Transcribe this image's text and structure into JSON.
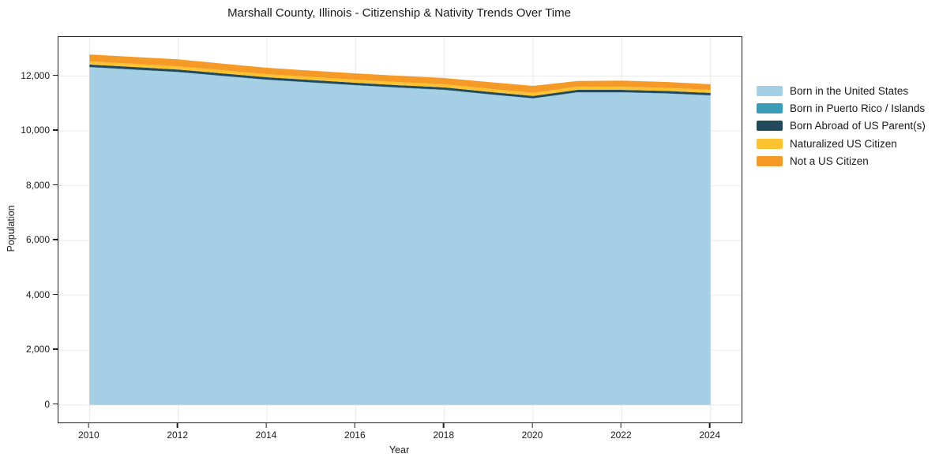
{
  "figure": {
    "background": "#ffffff",
    "text_color": "#1a1a1a",
    "grid_color": "#e8e8e8",
    "axis_color": "#1f1f1f"
  },
  "chart_data": {
    "type": "area",
    "stacked": true,
    "title": "Marshall County, Illinois - Citizenship & Nativity Trends Over Time",
    "xlabel": "Year",
    "ylabel": "Population",
    "x": [
      2010,
      2011,
      2012,
      2013,
      2014,
      2015,
      2016,
      2017,
      2018,
      2019,
      2020,
      2021,
      2022,
      2023,
      2024
    ],
    "series": [
      {
        "name": "Born in the United States",
        "color": "#a5cfe4",
        "values": [
          12320,
          12230,
          12140,
          12000,
          11860,
          11760,
          11660,
          11570,
          11490,
          11330,
          11180,
          11400,
          11400,
          11360,
          11290
        ]
      },
      {
        "name": "Born in Puerto Rico / Islands",
        "color": "#3b9cb8",
        "values": [
          10,
          10,
          10,
          10,
          10,
          10,
          10,
          10,
          10,
          10,
          10,
          10,
          10,
          10,
          10
        ]
      },
      {
        "name": "Born Abroad of US Parent(s)",
        "color": "#23495c",
        "values": [
          90,
          90,
          88,
          87,
          86,
          86,
          85,
          85,
          85,
          85,
          85,
          88,
          86,
          86,
          85
        ]
      },
      {
        "name": "Naturalized US Citizen",
        "color": "#fcc22f",
        "values": [
          118,
          117,
          116,
          115,
          114,
          114,
          113,
          114,
          114,
          114,
          112,
          116,
          114,
          113,
          112
        ]
      },
      {
        "name": "Not a US Citizen",
        "color": "#f59a27",
        "values": [
          250,
          253,
          255,
          243,
          232,
          230,
          230,
          230,
          230,
          242,
          255,
          205,
          225,
          215,
          205
        ]
      }
    ],
    "x_ticks": [
      2010,
      2012,
      2014,
      2016,
      2018,
      2020,
      2022,
      2024
    ],
    "x_tick_labels": [
      "2010",
      "2012",
      "2014",
      "2016",
      "2018",
      "2020",
      "2022",
      "2024"
    ],
    "y_ticks": [
      0,
      2000,
      4000,
      6000,
      8000,
      10000,
      12000
    ],
    "y_tick_labels": [
      "0",
      "2,000",
      "4,000",
      "6,000",
      "8,000",
      "10,000",
      "12,000"
    ],
    "xlim": [
      2009.3,
      2024.7
    ],
    "ylim": [
      -639,
      13424
    ],
    "grid": true,
    "legend_position": "right",
    "legend": [
      "Born in the United States",
      "Born in Puerto Rico / Islands",
      "Born Abroad of US Parent(s)",
      "Naturalized US Citizen",
      "Not a US Citizen"
    ]
  }
}
